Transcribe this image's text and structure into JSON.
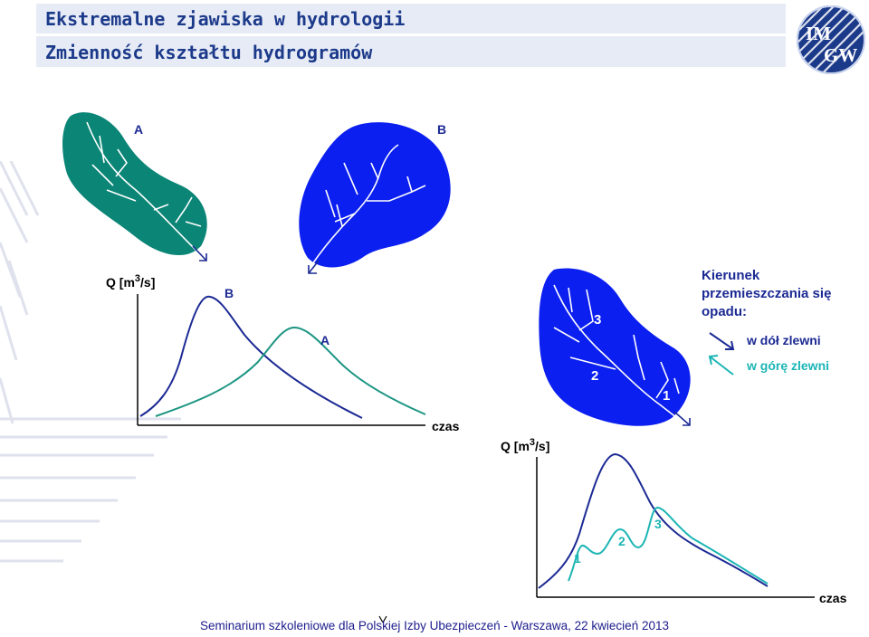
{
  "header": {
    "title": "Ekstremalne zjawiska w hydrologii",
    "subtitle": "Zmienność kształtu hydrogramów"
  },
  "logo": {
    "icon": "imgw-logo-icon",
    "text_top": "IM",
    "text_bottom": "GW"
  },
  "diagram1": {
    "catchment_a_label": "A",
    "catchment_b_label": "B",
    "q_label": "Q [m",
    "q_label_sup": "3",
    "q_label_unit": "/s]",
    "curve_b_label": "B",
    "curve_a_label": "A",
    "x_label": "czas"
  },
  "diagram2": {
    "q_label": "Q [m",
    "q_label_sup": "3",
    "q_label_unit": "/s]",
    "zone_labels": [
      "1",
      "2",
      "3"
    ],
    "peak_labels": [
      "1",
      "2",
      "3"
    ],
    "x_label": "czas"
  },
  "legend": {
    "title_lines": [
      "Kierunek",
      "przemieszczania się",
      "opadu:"
    ],
    "downstream_label": "w dół zlewni",
    "upstream_label": "w górę zlewni"
  },
  "colors": {
    "teal": "#0a8576",
    "blue": "#0b1ff0",
    "navy": "#1c2a94",
    "cyan": "#1cb5b5",
    "header_bg": "#e6ebf6",
    "title_color": "#1c3a8a"
  },
  "footer": {
    "text": "Seminarium szkoleniowe dla Polskiej Izby Ubezpieczeń - Warszawa, 22 kwiecień 2013"
  }
}
